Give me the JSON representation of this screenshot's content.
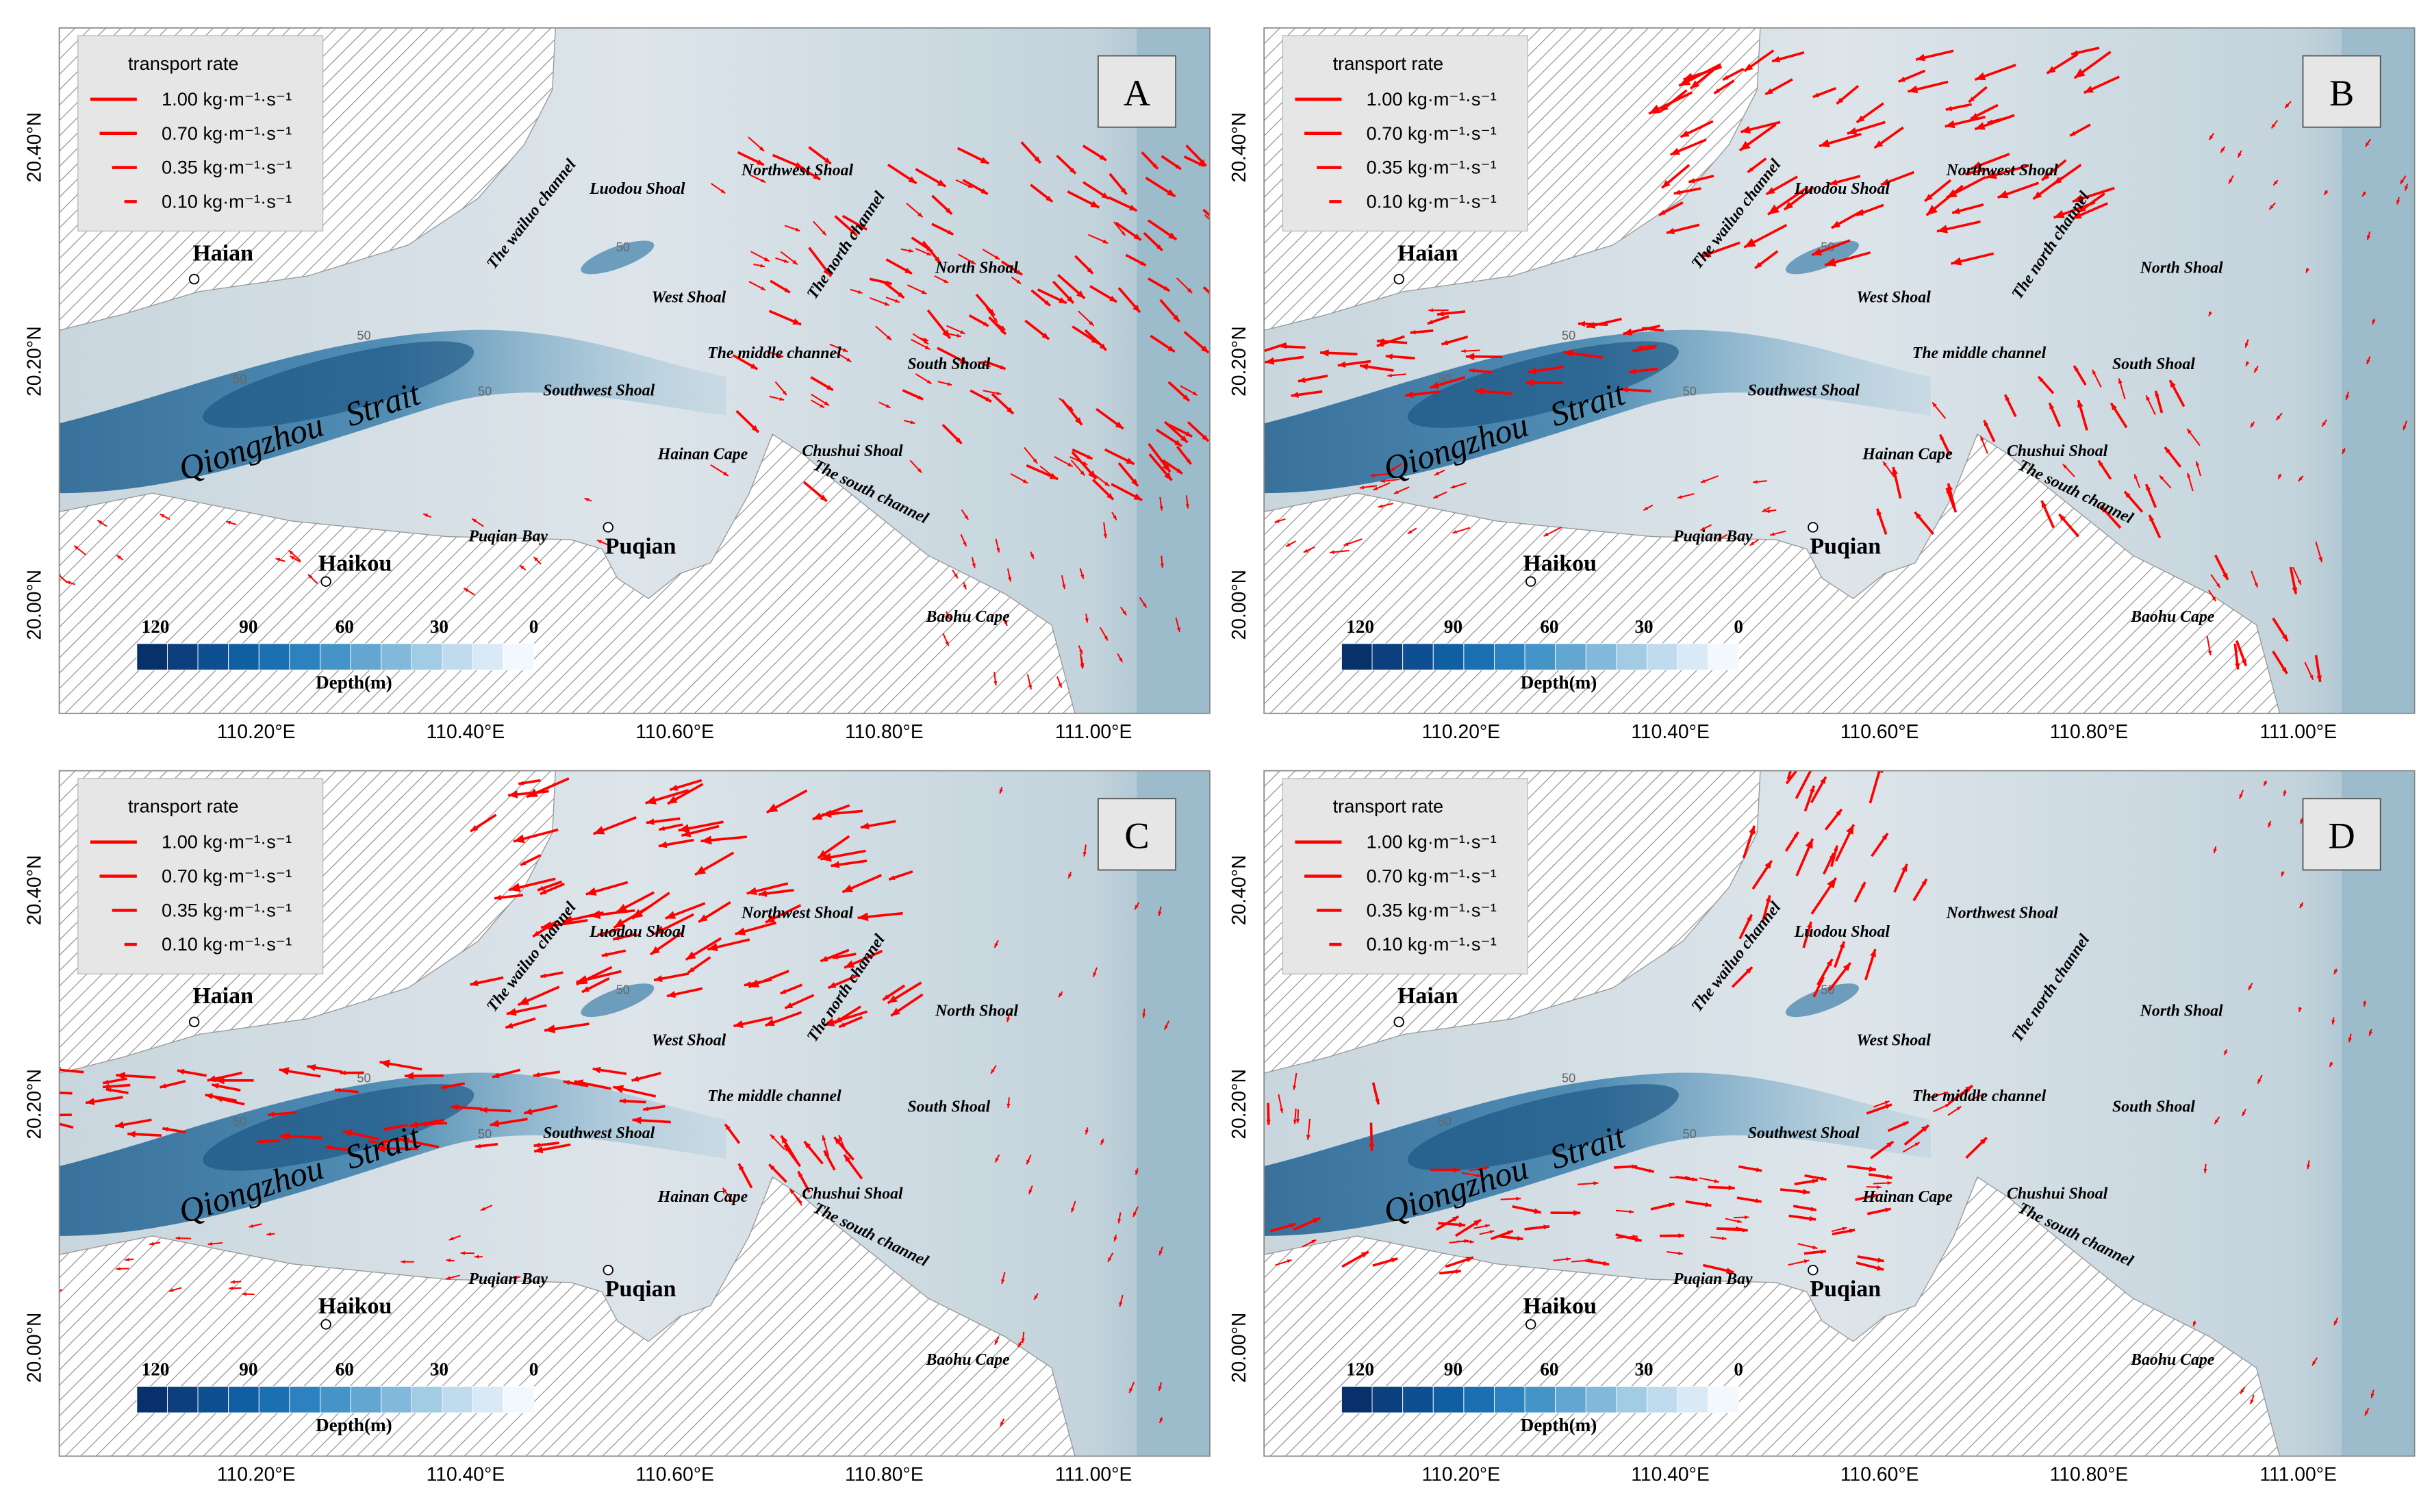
{
  "panels": [
    "A",
    "B",
    "C",
    "D"
  ],
  "legend": {
    "title": "transport rate",
    "entries": [
      "1.00 kg·m⁻¹·s⁻¹",
      "0.70 kg·m⁻¹·s⁻¹",
      "0.35 kg·m⁻¹·s⁻¹",
      "0.10 kg·m⁻¹·s⁻¹"
    ]
  },
  "x_ticks": [
    "110.20°E",
    "110.40°E",
    "110.60°E",
    "110.80°E",
    "111.00°E"
  ],
  "y_ticks": [
    "20.40°N",
    "20.20°N",
    "20.00°N"
  ],
  "colorbar": {
    "ticks": [
      "120",
      "90",
      "60",
      "30",
      "0"
    ],
    "title": "Depth(m)"
  },
  "contour_label": "50",
  "cities": [
    "Haian",
    "Haikou",
    "Puqian"
  ],
  "strait": "Qiongzhou   Strait",
  "features": [
    "Luodou Shoal",
    "Northwest Shoal",
    "West Shoal",
    "North Shoal",
    "The middle channel",
    "South Shoal",
    "Southwest Shoal",
    "Hainan Cape",
    "Chushui Shoal",
    "Puqian Bay",
    "Baohu Cape",
    "The wailuo channel",
    "The north channel",
    "The south channel"
  ]
}
